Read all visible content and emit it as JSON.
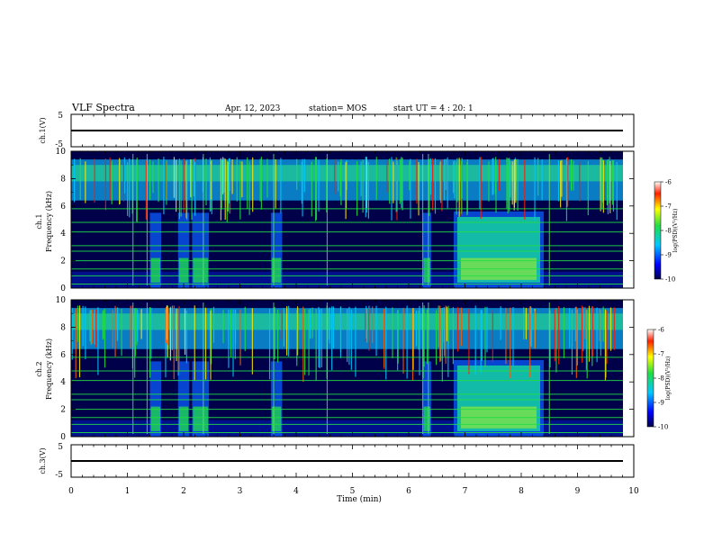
{
  "header": {
    "title": "VLF Spectra",
    "date": "Apr. 12, 2023",
    "station": "station= MOS",
    "start": "start  UT  =   4 : 20: 1"
  },
  "colors": {
    "background": "#00004a",
    "band_green": "#22dd44",
    "high_red": "#ff1a00"
  },
  "chart_data": [
    {
      "type": "line",
      "name": "ch1-voltage",
      "ylabel": "ch.1(V)",
      "ylim": [
        -5,
        5
      ],
      "yticks": [
        "5",
        "-5"
      ],
      "value": 0
    },
    {
      "type": "heatmap",
      "name": "ch1-spectrogram",
      "ylabel_top": "ch.1",
      "ylabel": "Frequency (kHz)",
      "ylim": [
        0,
        10
      ],
      "yticks": [
        "10",
        "8",
        "6",
        "4",
        "2",
        "0"
      ],
      "xlim": [
        0,
        10
      ],
      "colorbar": {
        "label": "log(PSD)(V²/Hz)",
        "range": [
          -10,
          -6
        ],
        "ticks": [
          "-6",
          "-7",
          "-8",
          "-9",
          "-10"
        ]
      },
      "broadband_bursts_min": [
        {
          "start": 1.4,
          "end": 1.6
        },
        {
          "start": 1.9,
          "end": 2.1
        },
        {
          "start": 2.15,
          "end": 2.45
        },
        {
          "start": 3.55,
          "end": 3.75
        },
        {
          "start": 6.25,
          "end": 6.4
        },
        {
          "start": 6.8,
          "end": 8.4
        }
      ],
      "horizontal_lines_khz": [
        0.3,
        0.9,
        1.4,
        2.0,
        2.7,
        3.1,
        4.1,
        4.8,
        5.8
      ]
    },
    {
      "type": "heatmap",
      "name": "ch2-spectrogram",
      "ylabel_top": "ch.2",
      "ylabel": "Frequency (kHz)",
      "ylim": [
        0,
        10
      ],
      "yticks": [
        "10",
        "8",
        "6",
        "4",
        "2",
        "0"
      ],
      "xlim": [
        0,
        10
      ],
      "colorbar": {
        "label": "log(PSD)(V²/Hz)",
        "range": [
          -10,
          -6
        ],
        "ticks": [
          "-6",
          "-7",
          "-8",
          "-9",
          "-10"
        ]
      },
      "broadband_bursts_min": [
        {
          "start": 1.4,
          "end": 1.6
        },
        {
          "start": 1.9,
          "end": 2.1
        },
        {
          "start": 2.15,
          "end": 2.45
        },
        {
          "start": 3.55,
          "end": 3.75
        },
        {
          "start": 6.25,
          "end": 6.4
        },
        {
          "start": 6.8,
          "end": 8.4
        }
      ],
      "horizontal_lines_khz": [
        0.3,
        0.9,
        1.4,
        2.0,
        2.7,
        3.1,
        4.1,
        4.8,
        5.8
      ]
    },
    {
      "type": "line",
      "name": "ch3-voltage",
      "ylabel": "ch.3(V)",
      "ylim": [
        -5,
        5
      ],
      "yticks": [
        "5",
        "-5"
      ],
      "value": 0
    }
  ],
  "xaxis": {
    "label": "Time  (min)",
    "ticks": [
      "0",
      "1",
      "2",
      "3",
      "4",
      "5",
      "6",
      "7",
      "8",
      "9",
      "10"
    ]
  }
}
